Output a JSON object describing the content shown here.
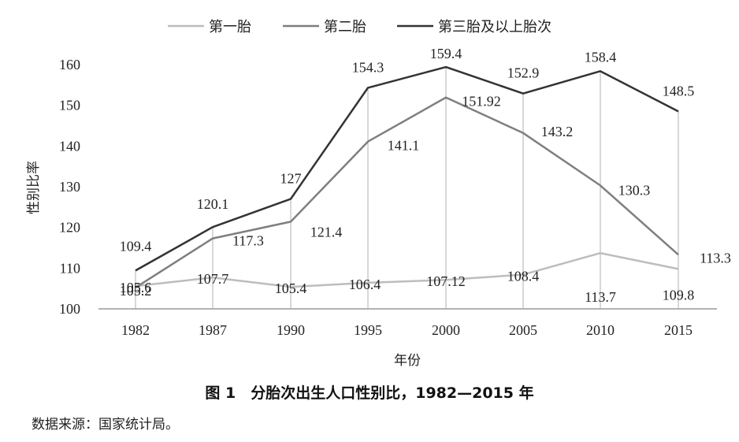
{
  "chart_data": {
    "type": "line",
    "xlabel": "年份",
    "ylabel": "性别比率",
    "ylim": [
      100,
      160
    ],
    "yticks": [
      100,
      110,
      120,
      130,
      140,
      150,
      160
    ],
    "categories": [
      "1982",
      "1987",
      "1990",
      "1995",
      "2000",
      "2005",
      "2010",
      "2015"
    ],
    "legend_position": "top",
    "grid": "vertical drop lines at each category",
    "series": [
      {
        "name": "第一胎",
        "color": "#bdbdbd",
        "values": [
          105.6,
          107.7,
          105.4,
          106.4,
          107.12,
          108.4,
          113.7,
          109.8
        ],
        "labels": [
          "105.6",
          "107.7",
          "105.4",
          "106.4",
          "107.12",
          "108.4",
          "113.7",
          "109.8"
        ]
      },
      {
        "name": "第二胎",
        "color": "#7f7f7f",
        "values": [
          105.2,
          117.3,
          121.4,
          141.1,
          151.92,
          143.2,
          130.3,
          113.3
        ],
        "labels": [
          "105.2",
          "117.3",
          "121.4",
          "141.1",
          "151.92",
          "143.2",
          "130.3",
          "113.3"
        ]
      },
      {
        "name": "第三胎及以上胎次",
        "color": "#333333",
        "values": [
          109.4,
          120.1,
          127,
          154.3,
          159.4,
          152.9,
          158.4,
          148.5
        ],
        "labels": [
          "109.4",
          "120.1",
          "127",
          "154.3",
          "159.4",
          "152.9",
          "158.4",
          "148.5"
        ]
      }
    ]
  },
  "caption": "图 1　分胎次出生人口性别比，1982—2015 年",
  "source": "数据来源：国家统计局。"
}
